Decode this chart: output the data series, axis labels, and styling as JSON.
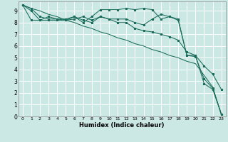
{
  "xlabel": "Humidex (Indice chaleur)",
  "bg_color": "#cce8e4",
  "grid_color": "#ffffff",
  "line_color": "#1a6b5a",
  "xlim": [
    -0.5,
    23.5
  ],
  "ylim": [
    0,
    9.8
  ],
  "xticks": [
    0,
    1,
    2,
    3,
    4,
    5,
    6,
    7,
    8,
    9,
    10,
    11,
    12,
    13,
    14,
    15,
    16,
    17,
    18,
    19,
    20,
    21,
    22,
    23
  ],
  "yticks": [
    0,
    1,
    2,
    3,
    4,
    5,
    6,
    7,
    8,
    9
  ],
  "line1_x": [
    0,
    1,
    2,
    3,
    4,
    5,
    6,
    7,
    8,
    9,
    10,
    11,
    12,
    13,
    14,
    15,
    16,
    17,
    18,
    19,
    20,
    21,
    22,
    23
  ],
  "line1_y": [
    9.5,
    9.2,
    9.0,
    8.7,
    8.5,
    8.2,
    8.0,
    7.7,
    7.5,
    7.2,
    7.0,
    6.7,
    6.5,
    6.2,
    6.0,
    5.7,
    5.5,
    5.2,
    5.0,
    4.7,
    4.5,
    3.5,
    2.5,
    0.1
  ],
  "line2_x": [
    0,
    1,
    2,
    3,
    4,
    5,
    6,
    7,
    8,
    9,
    10,
    11,
    12,
    13,
    14,
    15,
    16,
    17,
    18,
    19,
    20,
    21,
    22,
    23
  ],
  "line2_y": [
    9.5,
    9.0,
    8.2,
    8.2,
    8.2,
    8.2,
    8.5,
    8.0,
    8.5,
    9.1,
    9.1,
    9.1,
    9.2,
    9.1,
    9.2,
    9.1,
    8.3,
    8.5,
    8.2,
    5.2,
    5.2,
    2.8,
    2.3,
    0.2
  ],
  "line3_x": [
    0,
    1,
    2,
    3,
    4,
    5,
    6,
    7,
    8,
    9,
    10,
    11,
    12,
    13,
    14,
    15,
    16,
    17,
    18,
    19,
    20,
    21,
    22,
    23
  ],
  "line3_y": [
    9.5,
    9.2,
    8.5,
    8.3,
    8.3,
    8.3,
    8.5,
    8.2,
    8.0,
    8.5,
    8.3,
    8.3,
    8.3,
    8.0,
    7.8,
    8.3,
    8.7,
    8.5,
    8.3,
    5.2,
    5.1,
    3.2,
    2.4,
    0.2
  ],
  "line4_x": [
    0,
    1,
    2,
    3,
    4,
    5,
    6,
    7,
    8,
    9,
    10,
    11,
    12,
    13,
    14,
    15,
    16,
    17,
    18,
    19,
    20,
    21,
    22,
    23
  ],
  "line4_y": [
    9.5,
    8.2,
    8.2,
    8.5,
    8.3,
    8.2,
    8.3,
    8.5,
    8.2,
    8.5,
    8.3,
    8.0,
    8.0,
    7.5,
    7.3,
    7.2,
    7.0,
    6.8,
    6.5,
    5.5,
    5.2,
    4.3,
    3.6,
    2.3
  ]
}
